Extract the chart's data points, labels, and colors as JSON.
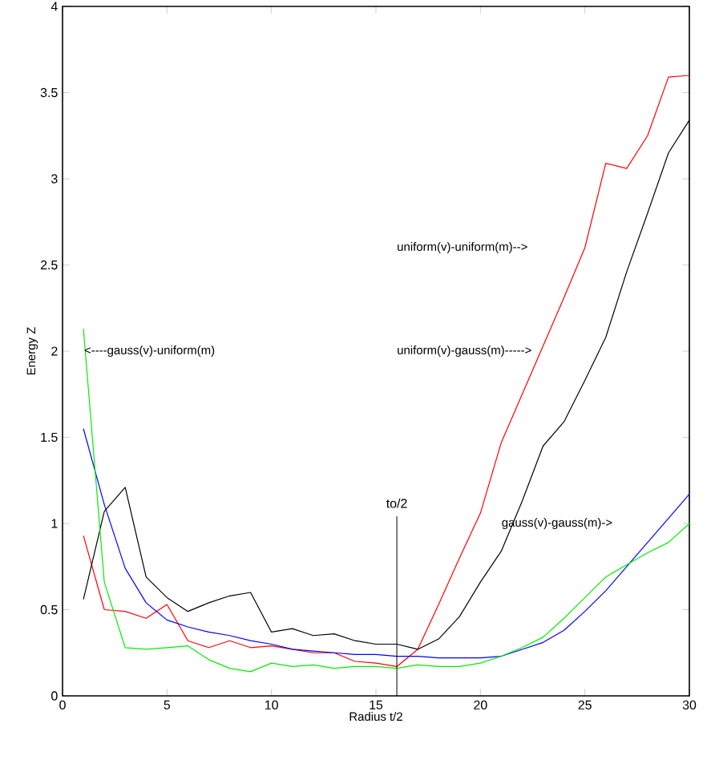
{
  "chart_data": {
    "type": "line",
    "xlabel": "Radius t/2",
    "ylabel": "Energy Z",
    "x": [
      1,
      2,
      3,
      4,
      5,
      6,
      7,
      8,
      9,
      10,
      11,
      12,
      13,
      14,
      15,
      16,
      17,
      18,
      19,
      20,
      21,
      22,
      23,
      24,
      25,
      26,
      27,
      28,
      29,
      30
    ],
    "series": [
      {
        "color": "#ff0000",
        "values": [
          0.93,
          0.5,
          0.49,
          0.45,
          0.53,
          0.32,
          0.28,
          0.32,
          0.28,
          0.29,
          0.27,
          0.25,
          0.25,
          0.2,
          0.19,
          0.17,
          0.27,
          0.53,
          0.8,
          1.06,
          1.47,
          1.75,
          2.03,
          2.31,
          2.6,
          3.09,
          3.06,
          3.25,
          3.59,
          3.6
        ]
      },
      {
        "color": "#000000",
        "values": [
          0.56,
          1.07,
          1.21,
          0.69,
          0.57,
          0.49,
          0.54,
          0.58,
          0.6,
          0.37,
          0.39,
          0.35,
          0.36,
          0.32,
          0.3,
          0.3,
          0.27,
          0.33,
          0.46,
          0.66,
          0.84,
          1.13,
          1.45,
          1.59,
          1.83,
          2.08,
          2.46,
          2.8,
          3.15,
          3.34
        ]
      },
      {
        "color": "#0000ff",
        "values": [
          1.55,
          1.11,
          0.74,
          0.54,
          0.44,
          0.4,
          0.37,
          0.35,
          0.32,
          0.3,
          0.27,
          0.26,
          0.25,
          0.24,
          0.24,
          0.23,
          0.23,
          0.22,
          0.22,
          0.22,
          0.23,
          0.27,
          0.31,
          0.38,
          0.49,
          0.61,
          0.75,
          0.89,
          1.03,
          1.17
        ]
      },
      {
        "color": "#00ee00",
        "values": [
          2.13,
          0.66,
          0.28,
          0.27,
          0.28,
          0.29,
          0.21,
          0.16,
          0.14,
          0.19,
          0.17,
          0.18,
          0.16,
          0.17,
          0.17,
          0.16,
          0.18,
          0.17,
          0.17,
          0.19,
          0.23,
          0.28,
          0.34,
          0.45,
          0.57,
          0.69,
          0.76,
          0.83,
          0.89,
          1.0
        ]
      }
    ],
    "xlim": [
      0,
      30
    ],
    "ylim": [
      0,
      4
    ],
    "xticks": [
      0,
      5,
      10,
      15,
      20,
      25,
      30
    ],
    "yticks": [
      0,
      0.5,
      1,
      1.5,
      2,
      2.5,
      3,
      3.5,
      4
    ],
    "ref_lines": [
      {
        "axis": "x",
        "value": 16,
        "label": "to/2",
        "color": "#000000"
      }
    ],
    "annotations": [
      "<----gauss(v)-uniform(m)",
      "uniform(v)-uniform(m)-->",
      "uniform(v)-gauss(m)----->",
      "gauss(v)-gauss(m)->"
    ],
    "grid": false,
    "marker": "none",
    "line_style": "solid"
  }
}
